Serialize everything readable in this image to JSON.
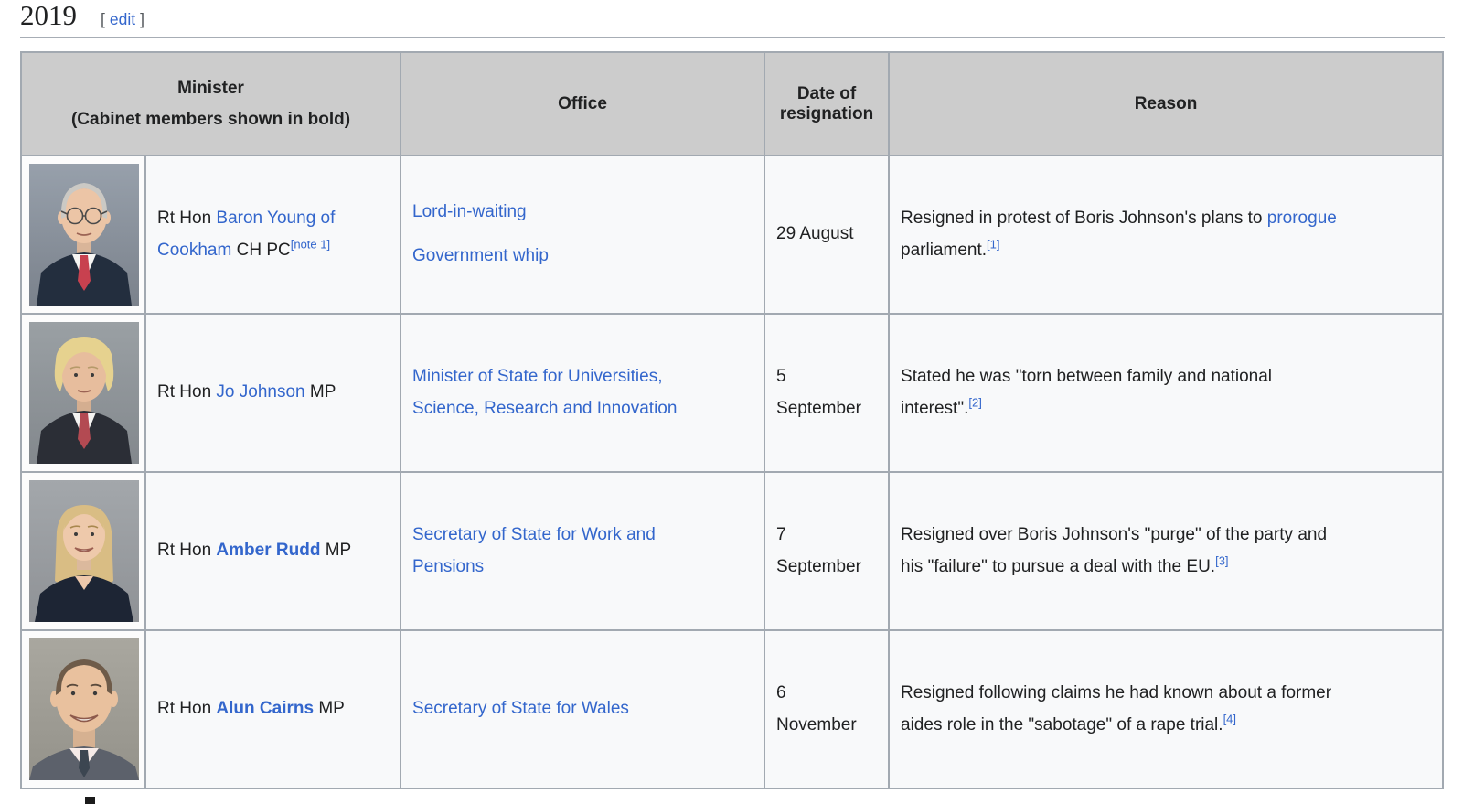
{
  "colors": {
    "link_blue": "#3366cc",
    "text": "#202122",
    "table_border": "#a2a9b1",
    "header_bg": "#cccccc",
    "cell_bg": "#f8f9fa"
  },
  "page": {
    "heading": "2019",
    "edit": {
      "open": "[",
      "label": "edit",
      "close": "]"
    }
  },
  "table": {
    "headers": {
      "minister": "Minister",
      "minister_note": "(Cabinet members shown in bold)",
      "office": "Office",
      "date_of_resignation": "Date of resignation",
      "reason": "Reason"
    },
    "rows": [
      {
        "minister": {
          "prefix": "Rt Hon ",
          "link": "Baron Young of Cookham",
          "suffix": " CH PC",
          "note_ref": "[note 1]"
        },
        "photo": {
          "style": "elder",
          "bg1": "#97a0ab",
          "bg2": "#7b828c",
          "skin": "#ecc5a6",
          "hair": "#cbc9c4",
          "suit": "#232e3e",
          "shirt": "#f6f5f3",
          "tie": "#c8414f"
        },
        "offices": [
          "Lord-in-waiting",
          "Government whip"
        ],
        "date": "29 August",
        "reason": {
          "pre": "Resigned in protest of Boris Johnson's plans to ",
          "link": "prorogue",
          "post": " parliament.",
          "ref": "[1]"
        }
      },
      {
        "minister": {
          "prefix": "Rt Hon ",
          "link": "Jo Johnson",
          "suffix": " MP"
        },
        "photo": {
          "style": "blond",
          "bg1": "#9aa0a4",
          "bg2": "#83888d",
          "skin": "#e7bd9d",
          "hair": "#e6d28f",
          "suit": "#2b2e36",
          "shirt": "#f4f3f1",
          "tie": "#b34a52"
        },
        "offices": [
          "Minister of State for Universities, Science, Research and Innovation"
        ],
        "date": "5 September",
        "reason": {
          "pre": "Stated he was \"torn between family and national interest\".",
          "ref": "[2]"
        }
      },
      {
        "minister": {
          "prefix": "Rt Hon ",
          "link": "Amber Rudd",
          "suffix": " MP"
        },
        "photo": {
          "style": "bob",
          "bg1": "#a3a7ab",
          "bg2": "#8f9296",
          "skin": "#eec9ab",
          "hair": "#d9bd84",
          "suit": "#1d2534",
          "shirt": "#eec9ab",
          "tie": "#1d2534"
        },
        "offices": [
          "Secretary of State for Work and Pensions"
        ],
        "date": "7 September",
        "reason": {
          "pre": "Resigned over Boris Johnson's \"purge\" of the party and his \"failure\" to pursue a deal with the EU.",
          "ref": "[3]"
        }
      },
      {
        "minister": {
          "prefix": "Rt Hon ",
          "link": "Alun Cairns",
          "suffix": " MP"
        },
        "photo": {
          "style": "closeup",
          "bg1": "#a9a79f",
          "bg2": "#94928a",
          "skin": "#e9c19e",
          "hair": "#6e5b49",
          "suit": "#5c616b",
          "shirt": "#f6ebe8",
          "tie": "#3c4651"
        },
        "offices": [
          "Secretary of State for Wales"
        ],
        "date": "6 November",
        "reason": {
          "pre": "Resigned following claims he had known about a former aides role in the \"sabotage\" of a rape trial.",
          "ref": "[4]"
        }
      }
    ]
  }
}
